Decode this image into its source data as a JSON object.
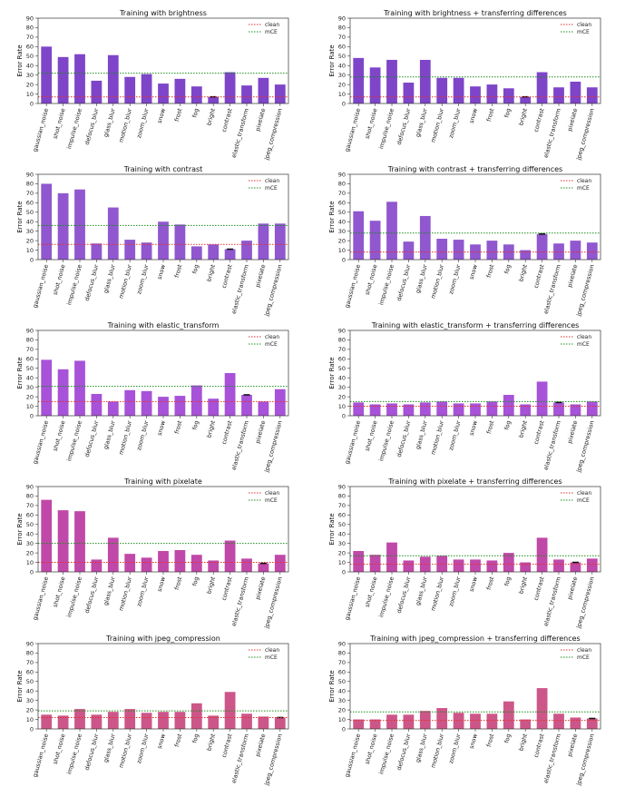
{
  "figure": {
    "categories": [
      "gaussian_noise",
      "shot_noise",
      "impulse_noise",
      "defocus_blur",
      "glass_blur",
      "motion_blur",
      "zoom_blur",
      "snow",
      "frost",
      "fog",
      "bright",
      "contrast",
      "elastic_transform",
      "pixelate",
      "jpeg_compression"
    ],
    "ylabel": "Error Rate",
    "legend": [
      "clean",
      "mCE"
    ],
    "yticks": [
      0,
      10,
      20,
      30,
      40,
      50,
      60,
      70,
      80,
      90
    ]
  },
  "chart_data": [
    {
      "type": "bar",
      "title": "Training with brightness",
      "ylabel": "Error Rate",
      "ylim": [
        0,
        90
      ],
      "color": "#7e45c9",
      "values": [
        60,
        49,
        52,
        24,
        51,
        28,
        31,
        21,
        26,
        18,
        7,
        33,
        19,
        27,
        20
      ],
      "clean": 7,
      "mce": 32,
      "marked": "bright",
      "legend_position": "right"
    },
    {
      "type": "bar",
      "title": "Training with brightness + transferring differences",
      "ylabel": "Error Rate",
      "ylim": [
        0,
        90
      ],
      "color": "#7e45c9",
      "values": [
        48,
        38,
        46,
        22,
        46,
        27,
        27,
        18,
        20,
        16,
        7,
        33,
        17,
        23,
        17
      ],
      "clean": 7,
      "mce": 28,
      "marked": "bright",
      "legend_position": "right"
    },
    {
      "type": "bar",
      "title": "Training with contrast",
      "ylabel": "Error Rate",
      "ylim": [
        0,
        90
      ],
      "color": "#9057cf",
      "values": [
        80,
        70,
        74,
        17,
        55,
        21,
        18,
        40,
        37,
        14,
        16,
        11,
        20,
        38,
        38
      ],
      "clean": 16,
      "mce": 36,
      "marked": "contrast",
      "legend_position": "right"
    },
    {
      "type": "bar",
      "title": "Training with contrast + transferring differences",
      "ylabel": "Error Rate",
      "ylim": [
        0,
        90
      ],
      "color": "#9057cf",
      "values": [
        51,
        41,
        61,
        19,
        46,
        22,
        21,
        16,
        20,
        16,
        10,
        27,
        17,
        20,
        18
      ],
      "clean": 8,
      "mce": 28,
      "marked": "contrast",
      "legend_position": "right"
    },
    {
      "type": "bar",
      "title": "Training with elastic_transform",
      "ylabel": "Error Rate",
      "ylim": [
        0,
        90
      ],
      "color": "#a752d8",
      "values": [
        59,
        49,
        58,
        23,
        15,
        27,
        26,
        20,
        21,
        32,
        18,
        45,
        22,
        15,
        28
      ],
      "clean": 15,
      "mce": 31,
      "marked": "elastic_transform",
      "legend_position": "right"
    },
    {
      "type": "bar",
      "title": "Training with elastic_transform + transferring differences",
      "ylabel": "Error Rate",
      "ylim": [
        0,
        90
      ],
      "color": "#a752d8",
      "values": [
        14,
        12,
        13,
        12,
        14,
        15,
        13,
        13,
        15,
        22,
        12,
        36,
        14,
        12,
        15
      ],
      "clean": 10,
      "mce": 15,
      "marked": "elastic_transform",
      "legend_position": "right"
    },
    {
      "type": "bar",
      "title": "Training with pixelate",
      "ylabel": "Error Rate",
      "ylim": [
        0,
        90
      ],
      "color": "#c048a8",
      "values": [
        76,
        65,
        64,
        13,
        36,
        19,
        15,
        22,
        23,
        18,
        12,
        33,
        14,
        9,
        18
      ],
      "clean": 10,
      "mce": 30,
      "marked": "pixelate",
      "legend_position": "right"
    },
    {
      "type": "bar",
      "title": "Training with pixelate + transferring differences",
      "ylabel": "Error Rate",
      "ylim": [
        0,
        90
      ],
      "color": "#c048a8",
      "values": [
        22,
        18,
        31,
        12,
        16,
        17,
        13,
        13,
        12,
        20,
        10,
        36,
        13,
        10,
        14
      ],
      "clean": 8,
      "mce": 17,
      "marked": "pixelate",
      "legend_position": "right"
    },
    {
      "type": "bar",
      "title": "Training with jpeg_compression",
      "ylabel": "Error Rate",
      "ylim": [
        0,
        90
      ],
      "color": "#cd5689",
      "values": [
        15,
        14,
        21,
        15,
        18,
        21,
        17,
        18,
        18,
        27,
        14,
        39,
        16,
        13,
        12
      ],
      "clean": 12,
      "mce": 19,
      "marked": "jpeg_compression",
      "legend_position": "right"
    },
    {
      "type": "bar",
      "title": "Training with jpeg_compression + transferring differences",
      "ylabel": "Error Rate",
      "ylim": [
        0,
        90
      ],
      "color": "#cd5689",
      "values": [
        10,
        10,
        15,
        15,
        19,
        22,
        17,
        16,
        16,
        29,
        10,
        43,
        16,
        12,
        11
      ],
      "clean": 9,
      "mce": 18,
      "marked": "jpeg_compression",
      "legend_position": "right"
    }
  ]
}
